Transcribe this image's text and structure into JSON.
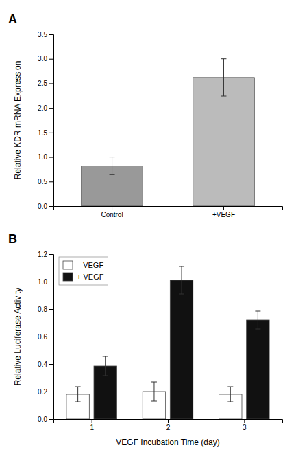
{
  "chart_data": [
    {
      "type": "bar",
      "title": "A",
      "categories": [
        "Control",
        "+VEGF"
      ],
      "values": [
        0.82,
        2.62
      ],
      "errors": [
        0.18,
        0.38
      ],
      "colors": [
        "#999999",
        "#bbbbbb"
      ],
      "ylabel": "Relative KDR mRNA Expression",
      "ylim": [
        0,
        3.5
      ],
      "yticks": [
        {
          "value": 0,
          "label": "0.0"
        },
        0.5,
        {
          "value": 1.0,
          "label": "1.0"
        },
        1.5,
        {
          "value": 2.0,
          "label": "2.0"
        },
        2.5,
        {
          "value": 3.0,
          "label": "3.0"
        },
        3.5
      ]
    },
    {
      "type": "bar",
      "title": "B",
      "x": [
        1,
        2,
        3
      ],
      "series": [
        {
          "name": "– VEGF",
          "color": "#ffffff",
          "values": [
            0.18,
            0.2,
            0.18
          ],
          "errors": [
            0.055,
            0.07,
            0.055
          ]
        },
        {
          "name": "+ VEGF",
          "color": "#111111",
          "values": [
            0.385,
            1.01,
            0.72
          ],
          "errors": [
            0.07,
            0.1,
            0.065
          ]
        }
      ],
      "xlabel": "VEGF Incubation Time (day)",
      "ylabel": "Relative Luciferase Activity",
      "xlim": [
        0.5,
        3.5
      ],
      "xticks": [
        1,
        2,
        3
      ],
      "ylim": [
        0,
        1.2
      ],
      "yticks": [
        {
          "value": 0,
          "label": "0.0"
        },
        0.2,
        0.4,
        0.6,
        0.8,
        {
          "value": 1.0,
          "label": "1.0"
        },
        1.2
      ],
      "legend": "upper left"
    }
  ]
}
